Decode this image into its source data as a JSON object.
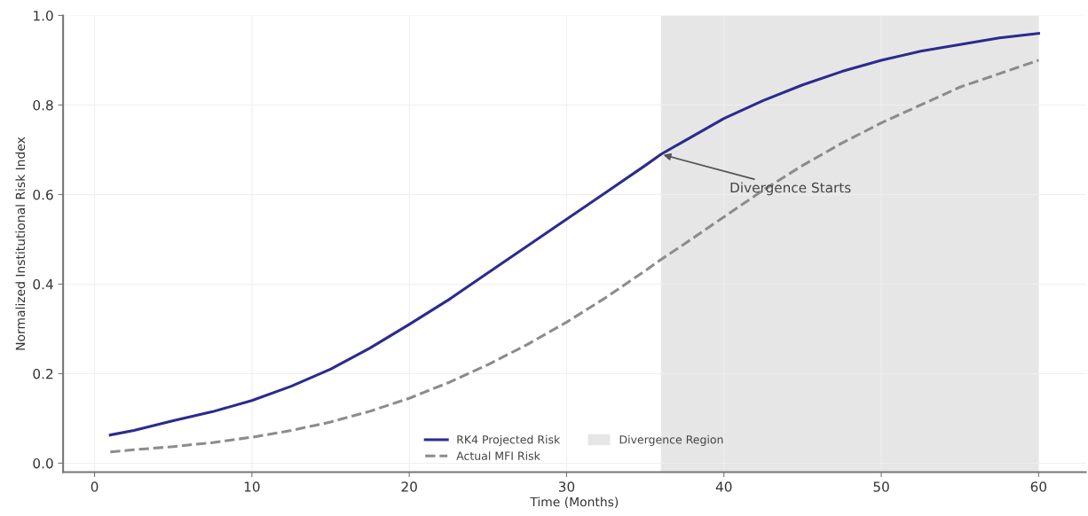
{
  "chart_data": {
    "type": "line",
    "xlabel": "Time (Months)",
    "ylabel": "Normalized Institutional Risk Index",
    "x": [
      1,
      2.5,
      5,
      7.5,
      10,
      12.5,
      15,
      17.5,
      20,
      22.5,
      25,
      27.5,
      30,
      32.5,
      35,
      36,
      37.5,
      40,
      42.5,
      45,
      47.5,
      50,
      52.5,
      55,
      57.5,
      60
    ],
    "series": [
      {
        "name": "RK4 Projected Risk",
        "color": "#2b2b8f",
        "line_style": "solid",
        "values": [
          0.063,
          0.073,
          0.095,
          0.115,
          0.14,
          0.172,
          0.21,
          0.257,
          0.31,
          0.365,
          0.425,
          0.485,
          0.545,
          0.605,
          0.665,
          0.69,
          0.72,
          0.77,
          0.81,
          0.845,
          0.875,
          0.9,
          0.92,
          0.935,
          0.95,
          0.96
        ]
      },
      {
        "name": "Actual MFI Risk",
        "color": "#8c8c8c",
        "line_style": "dashed",
        "values": [
          0.025,
          0.03,
          0.037,
          0.046,
          0.058,
          0.073,
          0.092,
          0.116,
          0.145,
          0.18,
          0.22,
          0.265,
          0.315,
          0.37,
          0.43,
          0.455,
          0.49,
          0.55,
          0.61,
          0.665,
          0.715,
          0.76,
          0.8,
          0.84,
          0.87,
          0.9
        ]
      }
    ],
    "bands": [
      {
        "axis": "x",
        "from": 36,
        "to": 60,
        "label": "Divergence Region",
        "color": "#e6e6e6"
      }
    ],
    "annotations": [
      {
        "text": "Divergence Starts",
        "x": 36,
        "y": 0.69
      }
    ],
    "xlim": [
      -2,
      63
    ],
    "ylim": [
      -0.02,
      1.0
    ],
    "xticks": [
      0,
      10,
      20,
      30,
      40,
      50,
      60
    ],
    "yticks": [
      {
        "value": 0,
        "label": "0.0"
      },
      {
        "value": 0.2,
        "label": "0.2"
      },
      {
        "value": 0.4,
        "label": "0.4"
      },
      {
        "value": 0.6,
        "label": "0.6"
      },
      {
        "value": 0.8,
        "label": "0.8"
      },
      {
        "value": 1.0,
        "label": "1.0"
      }
    ],
    "grid": true,
    "legend": "bottom",
    "marker": "none"
  }
}
